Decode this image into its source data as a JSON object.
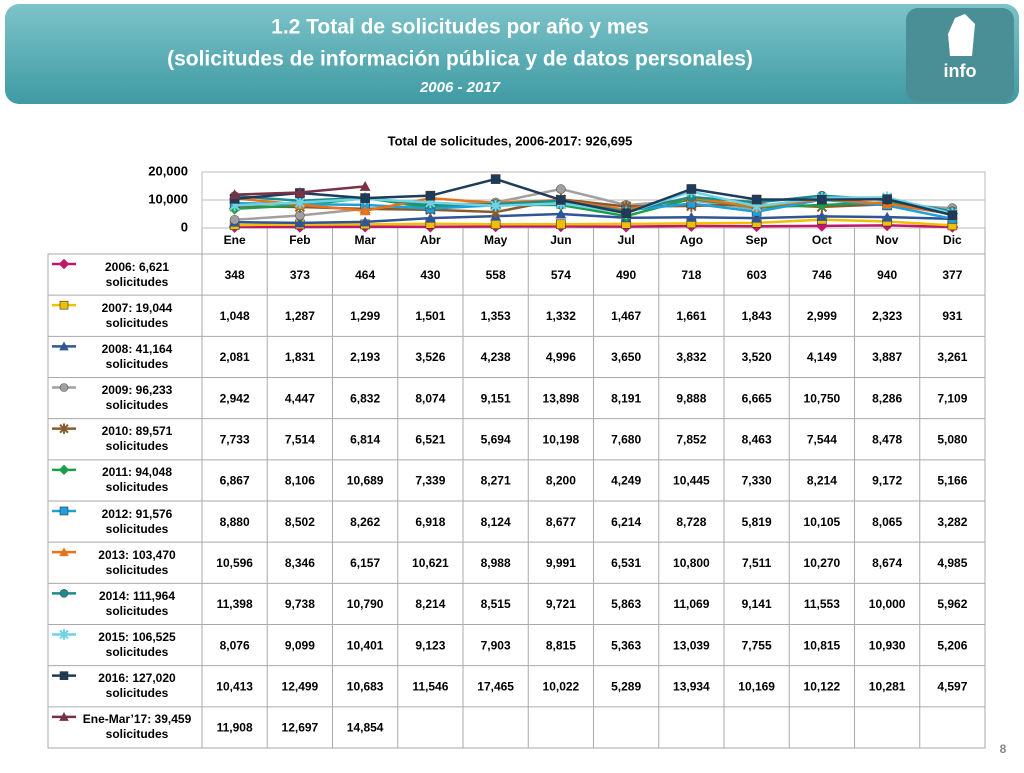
{
  "header": {
    "title": "1.2 Total de solicitudes por año y mes",
    "subtitle": "(solicitudes de información pública y de datos personales)",
    "period": "2006 - 2017",
    "logo": "info"
  },
  "page_number": "8",
  "chart_data": {
    "type": "line",
    "title": "Total de solicitudes, 2006-2017: 926,695",
    "categories": [
      "Ene",
      "Feb",
      "Mar",
      "Abr",
      "May",
      "Jun",
      "Jul",
      "Ago",
      "Sep",
      "Oct",
      "Nov",
      "Dic"
    ],
    "ylim": [
      0,
      20000
    ],
    "yticks": [
      0,
      {
        "value": 10000,
        "label": "10,000"
      },
      {
        "value": 20000,
        "label": "20,000"
      }
    ],
    "grid": true,
    "series": [
      {
        "name": "2006: 6,621 solicitudes",
        "color": "#c0166e",
        "marker": "diamond",
        "values": [
          348,
          373,
          464,
          430,
          558,
          574,
          490,
          718,
          603,
          746,
          940,
          377
        ],
        "value_labels": [
          "348",
          "373",
          "464",
          "430",
          "558",
          "574",
          "490",
          "718",
          "603",
          "746",
          "940",
          "377"
        ]
      },
      {
        "name": "2007: 19,044 solicitudes",
        "color": "#f0c000",
        "marker": "square",
        "values": [
          1048,
          1287,
          1299,
          1501,
          1353,
          1332,
          1467,
          1661,
          1843,
          2999,
          2323,
          931
        ],
        "value_labels": [
          "1,048",
          "1,287",
          "1,299",
          "1,501",
          "1,353",
          "1,332",
          "1,467",
          "1,661",
          "1,843",
          "2,999",
          "2,323",
          "931"
        ]
      },
      {
        "name": "2008: 41,164 solicitudes",
        "color": "#2f5597",
        "marker": "triangle",
        "values": [
          2081,
          1831,
          2193,
          3526,
          4238,
          4996,
          3650,
          3832,
          3520,
          4149,
          3887,
          3261
        ],
        "value_labels": [
          "2,081",
          "1,831",
          "2,193",
          "3,526",
          "4,238",
          "4,996",
          "3,650",
          "3,832",
          "3,520",
          "4,149",
          "3,887",
          "3,261"
        ]
      },
      {
        "name": "2009: 96,233 solicitudes",
        "color": "#a0a0a0",
        "marker": "circle",
        "values": [
          2942,
          4447,
          6832,
          8074,
          9151,
          13898,
          8191,
          9888,
          6665,
          10750,
          8286,
          7109
        ],
        "value_labels": [
          "2,942",
          "4,447",
          "6,832",
          "8,074",
          "9,151",
          "13,898",
          "8,191",
          "9,888",
          "6,665",
          "10,750",
          "8,286",
          "7,109"
        ]
      },
      {
        "name": "2010: 89,571 solicitudes",
        "color": "#8b5a2b",
        "marker": "star",
        "values": [
          7733,
          7514,
          6814,
          6521,
          5694,
          10198,
          7680,
          7852,
          8463,
          7544,
          8478,
          5080
        ],
        "value_labels": [
          "7,733",
          "7,514",
          "6,814",
          "6,521",
          "5,694",
          "10,198",
          "7,680",
          "7,852",
          "8,463",
          "7,544",
          "8,478",
          "5,080"
        ]
      },
      {
        "name": "2011: 94,048 solicitudes",
        "color": "#1e9e4a",
        "marker": "diamond",
        "values": [
          6867,
          8106,
          10689,
          7339,
          8271,
          8200,
          4249,
          10445,
          7330,
          8214,
          9172,
          5166
        ],
        "value_labels": [
          "6,867",
          "8,106",
          "10,689",
          "7,339",
          "8,271",
          "8,200",
          "4,249",
          "10,445",
          "7,330",
          "8,214",
          "9,172",
          "5,166"
        ]
      },
      {
        "name": "2012: 91,576 solicitudes",
        "color": "#1ea0dc",
        "marker": "square",
        "values": [
          8880,
          8502,
          8262,
          6918,
          8124,
          8677,
          6214,
          8728,
          5819,
          10105,
          8065,
          3282
        ],
        "value_labels": [
          "8,880",
          "8,502",
          "8,262",
          "6,918",
          "8,124",
          "8,677",
          "6,214",
          "8,728",
          "5,819",
          "10,105",
          "8,065",
          "3,282"
        ]
      },
      {
        "name": "2013: 103,470 solicitudes",
        "color": "#e8731a",
        "marker": "triangle",
        "values": [
          10596,
          8346,
          6157,
          10621,
          8988,
          9991,
          6531,
          10800,
          7511,
          10270,
          8674,
          4985
        ],
        "value_labels": [
          "10,596",
          "8,346",
          "6,157",
          "10,621",
          "8,988",
          "9,991",
          "6,531",
          "10,800",
          "7,511",
          "10,270",
          "8,674",
          "4,985"
        ]
      },
      {
        "name": "2014: 111,964 solicitudes",
        "color": "#1a8c8c",
        "marker": "circle",
        "values": [
          11398,
          9738,
          10790,
          8214,
          8515,
          9721,
          5863,
          11069,
          9141,
          11553,
          10000,
          5962
        ],
        "value_labels": [
          "11,398",
          "9,738",
          "10,790",
          "8,214",
          "8,515",
          "9,721",
          "5,863",
          "11,069",
          "9,141",
          "11,553",
          "10,000",
          "5,962"
        ]
      },
      {
        "name": "2015: 106,525 solicitudes",
        "color": "#6fd3e3",
        "marker": "star",
        "values": [
          8076,
          9099,
          10401,
          9123,
          7903,
          8815,
          5363,
          13039,
          7755,
          10815,
          10930,
          5206
        ],
        "value_labels": [
          "8,076",
          "9,099",
          "10,401",
          "9,123",
          "7,903",
          "8,815",
          "5,363",
          "13,039",
          "7,755",
          "10,815",
          "10,930",
          "5,206"
        ]
      },
      {
        "name": "2016: 127,020 solicitudes",
        "color": "#1f3b5a",
        "marker": "square",
        "values": [
          10413,
          12499,
          10683,
          11546,
          17465,
          10022,
          5289,
          13934,
          10169,
          10122,
          10281,
          4597
        ],
        "value_labels": [
          "10,413",
          "12,499",
          "10,683",
          "11,546",
          "17,465",
          "10,022",
          "5,289",
          "13,934",
          "10,169",
          "10,122",
          "10,281",
          "4,597"
        ]
      },
      {
        "name": "Ene-Mar’17: 39,459 solicitudes",
        "color": "#7a3045",
        "marker": "triangle",
        "values": [
          11908,
          12697,
          14854,
          null,
          null,
          null,
          null,
          null,
          null,
          null,
          null,
          null
        ],
        "value_labels": [
          "11,908",
          "12,697",
          "14,854",
          null,
          null,
          null,
          null,
          null,
          null,
          null,
          null,
          null
        ]
      }
    ]
  }
}
